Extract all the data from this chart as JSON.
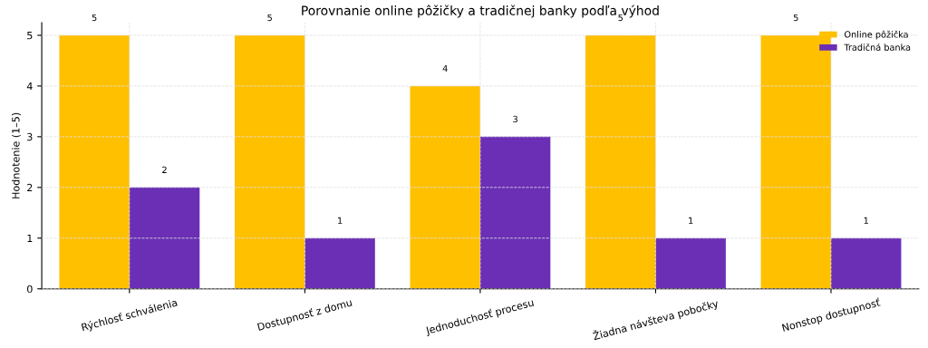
{
  "chart_data": {
    "type": "bar",
    "title": "Porovnanie online pôžičky a tradičnej banky podľa výhod",
    "ylabel": "Hodnotenie (1–5)",
    "categories": [
      "Rýchlosť schválenia",
      "Dostupnosť z domu",
      "Jednoduchosť procesu",
      "Žiadna návšteva pobočky",
      "Nonstop dostupnosť"
    ],
    "series": [
      {
        "name": "Online pôžička",
        "color": "#ffc000",
        "values": [
          5,
          5,
          4,
          5,
          5
        ]
      },
      {
        "name": "Tradičná banka",
        "color": "#6a2fb5",
        "values": [
          2,
          1,
          3,
          1,
          1
        ]
      }
    ],
    "ylim": [
      0,
      5.25
    ],
    "yticks": [
      0,
      1,
      2,
      3,
      4,
      5
    ],
    "grid": true,
    "legend": "top right",
    "data_labels": true
  }
}
